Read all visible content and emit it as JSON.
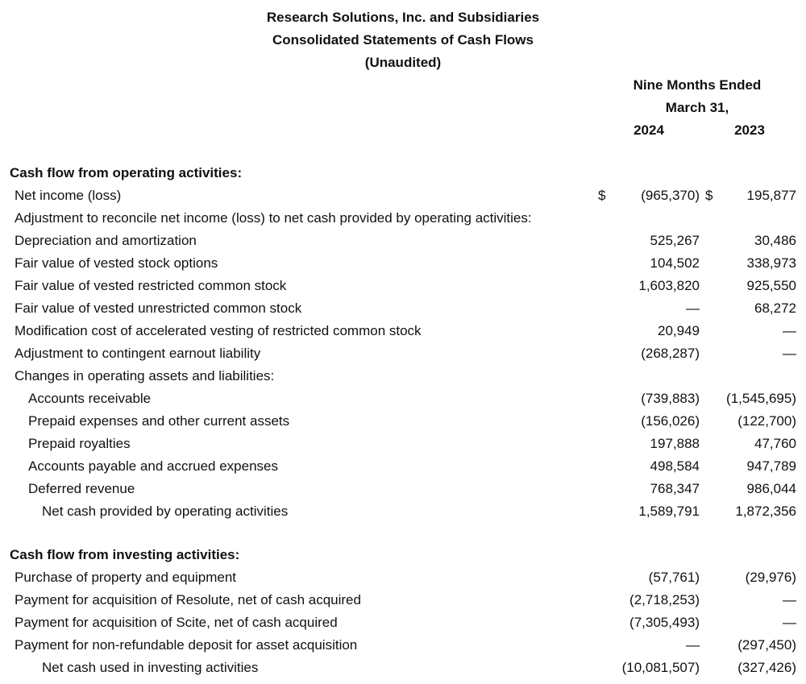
{
  "header": {
    "company": "Research Solutions, Inc. and Subsidiaries",
    "statement": "Consolidated Statements of Cash Flows",
    "note": "(Unaudited)",
    "period": "Nine Months Ended",
    "date": "March 31,",
    "years": [
      "2024",
      "2023"
    ]
  },
  "sections": [
    {
      "title": "Cash flow from operating activities:",
      "rows": [
        {
          "label": "Net income (loss)",
          "indent": 1,
          "v2024": "(965,370)",
          "v2023": "195,877",
          "dollar": "$"
        },
        {
          "label": "Adjustment to reconcile net income (loss) to net cash provided by operating activities:",
          "indent": 1
        },
        {
          "label": "Depreciation and amortization",
          "indent": 1,
          "v2024": "525,267",
          "v2023": "30,486"
        },
        {
          "label": "Fair value of vested stock options",
          "indent": 1,
          "v2024": "104,502",
          "v2023": "338,973"
        },
        {
          "label": "Fair value of vested restricted common stock",
          "indent": 1,
          "v2024": "1,603,820",
          "v2023": "925,550"
        },
        {
          "label": "Fair value of vested unrestricted common stock",
          "indent": 1,
          "v2024": "—",
          "v2023": "68,272"
        },
        {
          "label": "Modification cost of accelerated vesting of restricted common stock",
          "indent": 1,
          "v2024": "20,949",
          "v2023": "—"
        },
        {
          "label": "Adjustment to contingent earnout liability",
          "indent": 1,
          "v2024": "(268,287)",
          "v2023": "—"
        },
        {
          "label": "Changes in operating assets and liabilities:",
          "indent": 1
        },
        {
          "label": "Accounts receivable",
          "indent": 2,
          "v2024": "(739,883)",
          "v2023": "(1,545,695)"
        },
        {
          "label": "Prepaid expenses and other current assets",
          "indent": 2,
          "v2024": "(156,026)",
          "v2023": "(122,700)"
        },
        {
          "label": "Prepaid royalties",
          "indent": 2,
          "v2024": "197,888",
          "v2023": "47,760"
        },
        {
          "label": "Accounts payable and accrued expenses",
          "indent": 2,
          "v2024": "498,584",
          "v2023": "947,789"
        },
        {
          "label": "Deferred revenue",
          "indent": 2,
          "v2024": "768,347",
          "v2023": "986,044"
        },
        {
          "label": "Net cash provided by operating activities",
          "indent": 3,
          "v2024": "1,589,791",
          "v2023": "1,872,356"
        }
      ]
    },
    {
      "title": "Cash flow from investing activities:",
      "rows": [
        {
          "label": "Purchase of property and equipment",
          "indent": 1,
          "v2024": "(57,761)",
          "v2023": "(29,976)"
        },
        {
          "label": "Payment for acquisition of Resolute, net of cash acquired",
          "indent": 1,
          "v2024": "(2,718,253)",
          "v2023": "—"
        },
        {
          "label": "Payment for acquisition of Scite, net of cash acquired",
          "indent": 1,
          "v2024": "(7,305,493)",
          "v2023": "—"
        },
        {
          "label": "Payment for non-refundable deposit for asset acquisition",
          "indent": 1,
          "v2024": "—",
          "v2023": "(297,450)"
        },
        {
          "label": "Net cash used in investing activities",
          "indent": 3,
          "v2024": "(10,081,507)",
          "v2023": "(327,426)"
        }
      ]
    }
  ]
}
